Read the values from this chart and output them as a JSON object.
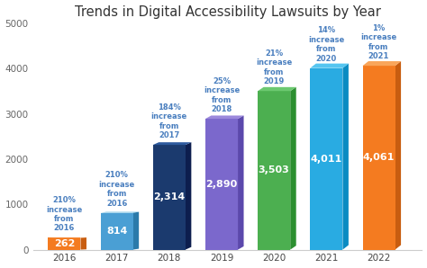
{
  "title": "Trends in Digital Accessibility Lawsuits by Year",
  "categories": [
    "2016",
    "2017",
    "2018",
    "2019",
    "2020",
    "2021",
    "2022"
  ],
  "values": [
    262,
    814,
    2314,
    2890,
    3503,
    4011,
    4061
  ],
  "bar_colors": [
    "#F47B20",
    "#4A9FD4",
    "#1B3A6E",
    "#7B68CC",
    "#4CAF50",
    "#29ABE2",
    "#F47B20"
  ],
  "bar_top_colors": [
    "#F9A55A",
    "#72BDE0",
    "#2D5A9E",
    "#9B88DC",
    "#6CC970",
    "#55C5F0",
    "#F9A55A"
  ],
  "bar_side_colors": [
    "#C85D10",
    "#2A7AAA",
    "#0D1E4E",
    "#5B48AC",
    "#2C8F30",
    "#0A8BC2",
    "#C85D10"
  ],
  "value_labels": [
    "262",
    "814",
    "2,314",
    "2,890",
    "3,503",
    "4,011",
    "4,061"
  ],
  "annotations": [
    "210%\nincrease\nfrom\n2016",
    "210%\nincrease\nfrom\n2016",
    "184%\nincrease\nfrom\n2017",
    "25%\nincrease\nfrom\n2018",
    "21%\nincrease\nfrom\n2019",
    "14%\nincrease\nfrom\n2020",
    "1%\nincrease\nfrom\n2021"
  ],
  "annot_color": "#4A7FBF",
  "ylim": [
    0,
    5000
  ],
  "yticks": [
    0,
    1000,
    2000,
    3000,
    4000,
    5000
  ],
  "title_color": "#333333",
  "title_fontsize": 10.5,
  "background_color": "#FFFFFF",
  "bar_width": 0.62,
  "depth": 0.15
}
